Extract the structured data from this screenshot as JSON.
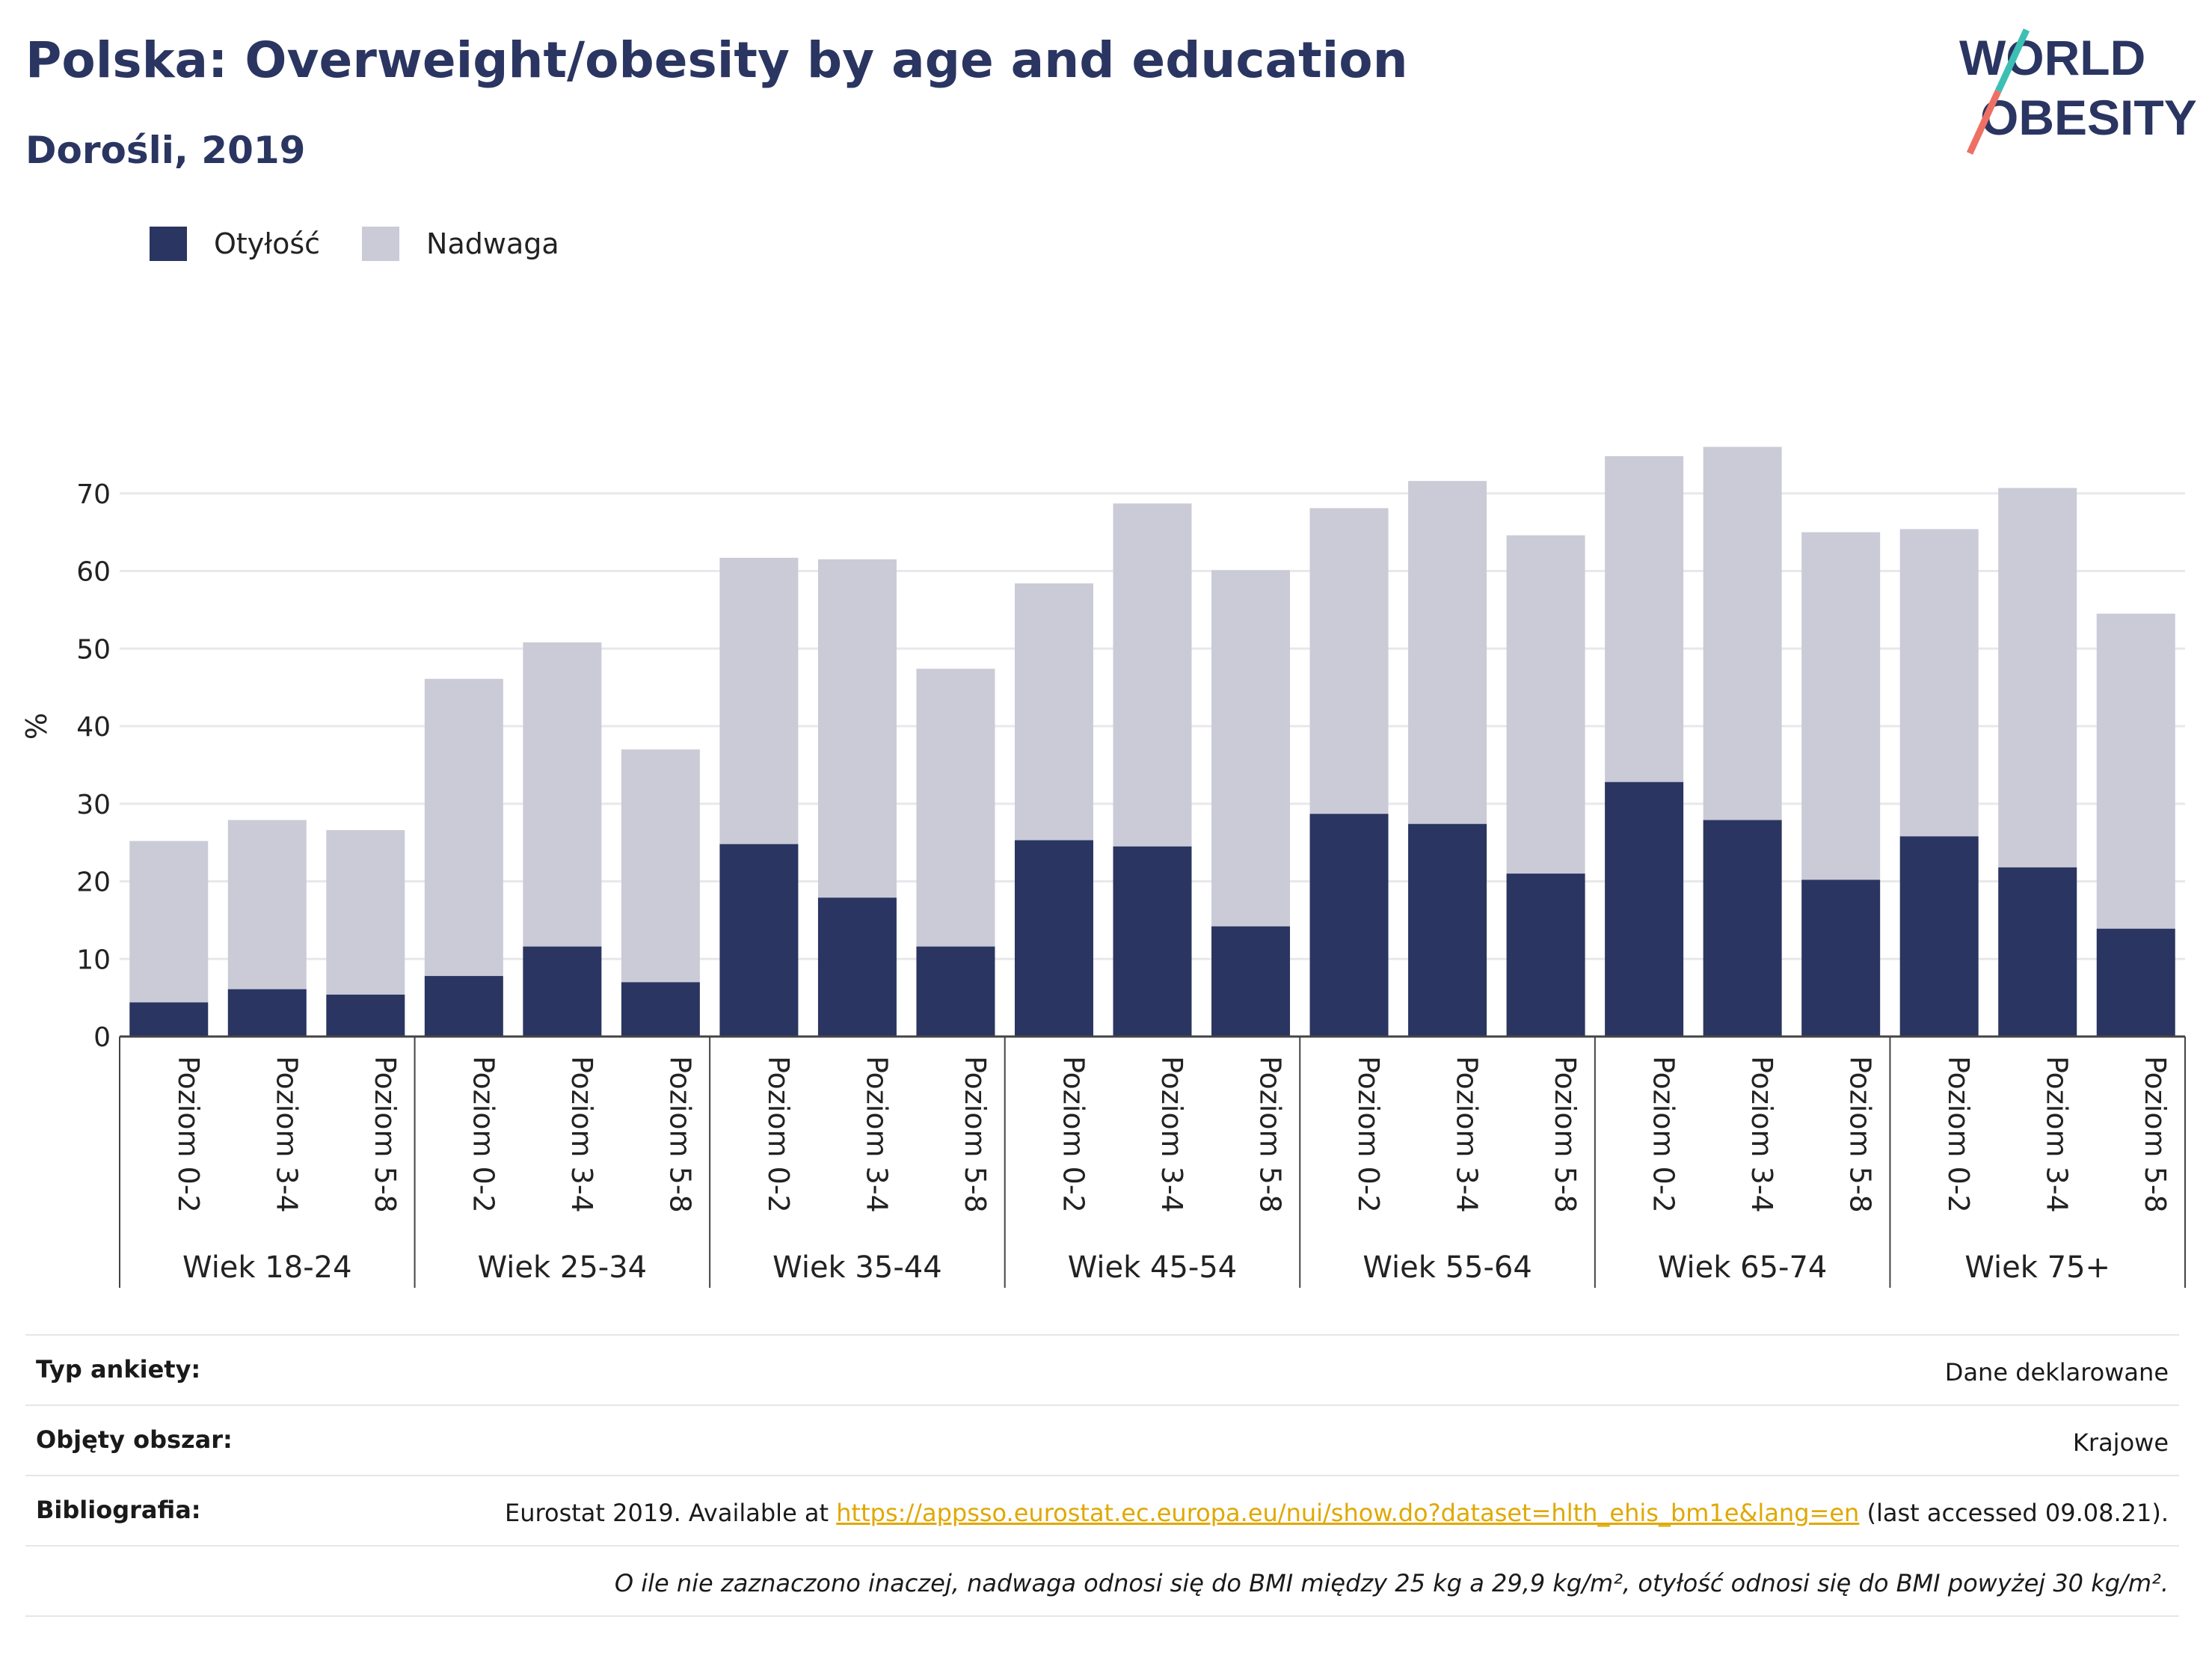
{
  "header": {
    "title": "Polska: Overweight/obesity by age and education",
    "subtitle": "Dorośli, 2019"
  },
  "logo": {
    "line1": "WORLD",
    "line2": "OBESITY"
  },
  "colors": {
    "obesity": "#2a3561",
    "overweight": "#cacbd7",
    "accent_teal": "#3ebfb4",
    "accent_coral": "#ee7064",
    "link": "#e0a800"
  },
  "chart_data": {
    "type": "bar",
    "stacked": true,
    "ylabel": "%",
    "ylim": [
      0,
      80
    ],
    "yticks": [
      0,
      10,
      20,
      30,
      40,
      50,
      60,
      70
    ],
    "grid": true,
    "legend_position": "top-left",
    "groups": [
      "Wiek 18-24",
      "Wiek 25-34",
      "Wiek 35-44",
      "Wiek 45-54",
      "Wiek 55-64",
      "Wiek 65-74",
      "Wiek 75+"
    ],
    "levels": [
      "Poziom 0-2",
      "Poziom 3-4",
      "Poziom 5-8"
    ],
    "series": [
      {
        "name": "Otyłość",
        "values": [
          4.4,
          6.1,
          5.4,
          7.8,
          11.6,
          7.0,
          24.8,
          17.9,
          11.6,
          25.3,
          24.5,
          14.2,
          28.7,
          27.4,
          21.0,
          32.8,
          27.9,
          20.2,
          25.8,
          21.8,
          13.9
        ]
      },
      {
        "name": "Nadwaga",
        "values": [
          20.8,
          21.8,
          21.2,
          38.3,
          39.2,
          30.0,
          36.9,
          43.6,
          35.8,
          33.1,
          44.2,
          45.9,
          39.4,
          44.2,
          43.6,
          42.0,
          48.1,
          44.8,
          39.6,
          48.9,
          40.6
        ]
      }
    ]
  },
  "meta": {
    "rows": [
      {
        "label": "Typ ankiety:",
        "value": "Dane deklarowane"
      },
      {
        "label": "Objęty obszar:",
        "value": "Krajowe"
      }
    ],
    "bibliography": {
      "label": "Bibliografia:",
      "prefix": "Eurostat 2019. Available at ",
      "link": "https://appsso.eurostat.ec.europa.eu/nui/show.do?dataset=hlth_ehis_bm1e&lang=en",
      "suffix": " (last accessed 09.08.21)."
    },
    "note": "O ile nie zaznaczono inaczej, nadwaga odnosi się do BMI między 25 kg a 29,9 kg/m², otyłość odnosi się do BMI powyżej 30 kg/m²."
  }
}
